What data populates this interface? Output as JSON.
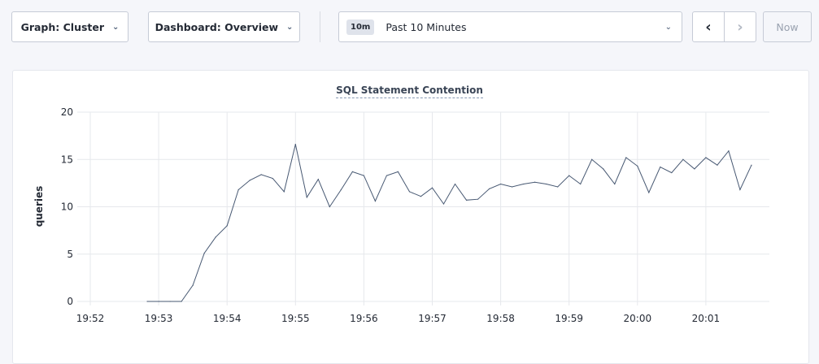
{
  "toolbar": {
    "graph_label": "Graph: Cluster",
    "dashboard_label": "Dashboard: Overview",
    "time_badge": "10m",
    "time_range": "Past 10 Minutes",
    "now_label": "Now"
  },
  "chart_data": {
    "type": "line",
    "title": "SQL Statement Contention",
    "ylabel": "queries",
    "xlabel": "",
    "ylim": [
      0,
      20
    ],
    "yticks": [
      0,
      5,
      10,
      15,
      20
    ],
    "xticks": [
      "19:52",
      "19:53",
      "19:54",
      "19:55",
      "19:56",
      "19:57",
      "19:58",
      "19:59",
      "20:00",
      "20:01"
    ],
    "grid": true,
    "color": "#475872",
    "x_start": "19:52:50",
    "x_step_seconds": 10,
    "values": [
      0,
      0,
      0,
      0,
      1.7,
      5.1,
      6.8,
      8.0,
      11.8,
      12.8,
      13.4,
      13.0,
      11.6,
      16.6,
      11.0,
      12.9,
      10.0,
      11.8,
      13.7,
      13.3,
      10.6,
      13.3,
      13.7,
      11.6,
      11.1,
      12.0,
      10.3,
      12.4,
      10.7,
      10.8,
      11.9,
      12.4,
      12.1,
      12.4,
      12.6,
      12.4,
      12.1,
      13.3,
      12.4,
      15.0,
      14.0,
      12.4,
      15.2,
      14.3,
      11.5,
      14.2,
      13.6,
      15.0,
      14.0,
      15.2,
      14.4,
      15.9,
      11.8,
      14.4
    ]
  }
}
